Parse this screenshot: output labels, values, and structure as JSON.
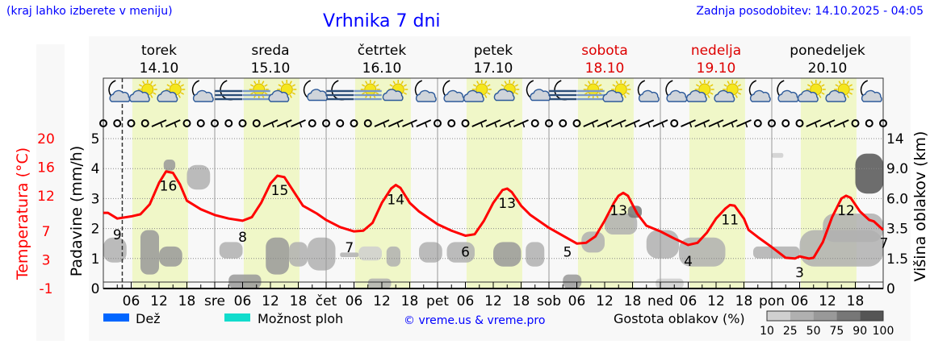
{
  "header": {
    "region_hint": "(kraj lahko izberete v meniju)",
    "title": "Vrhnika 7 dni",
    "updated": "Zadnja posodobitev: 14.10.2025 - 04:05"
  },
  "colors": {
    "temp": "#ff0000",
    "rain": "#0066ff",
    "showers": "#11dccc",
    "daylight": "#f0f7c8",
    "weekend": "#dd0000",
    "link": "#0000ff"
  },
  "legend": {
    "rain": "Dež",
    "showers": "Možnost ploh",
    "copyright": "© vreme.us & vreme.pro",
    "cloud_density_title": "Gostota oblakov (%)",
    "cloud_density_ticks": [
      "10",
      "25",
      "50",
      "75",
      "90",
      "100"
    ]
  },
  "chart_data": {
    "type": "line",
    "title": "Vrhnika 7 dni",
    "x_unit": "hours from Tue 14.10 00:00",
    "xlim": [
      0,
      168
    ],
    "now_hour": 4.08,
    "daylight_hours": [
      6.25,
      18.25
    ],
    "days": [
      {
        "name": "torek",
        "date": "14.10",
        "weekend": false,
        "abbr": ""
      },
      {
        "name": "sreda",
        "date": "15.10",
        "weekend": false,
        "abbr": "sre"
      },
      {
        "name": "četrtek",
        "date": "16.10",
        "weekend": false,
        "abbr": "čet"
      },
      {
        "name": "petek",
        "date": "17.10",
        "weekend": false,
        "abbr": "pet"
      },
      {
        "name": "sobota",
        "date": "18.10",
        "weekend": true,
        "abbr": "sob"
      },
      {
        "name": "nedelja",
        "date": "19.10",
        "weekend": true,
        "abbr": "ned"
      },
      {
        "name": "ponedeljek",
        "date": "20.10",
        "weekend": false,
        "abbr": "pon"
      }
    ],
    "hour_ticks": [
      "06",
      "12",
      "18"
    ],
    "axes": {
      "temp": {
        "label": "Temperatura (°C)",
        "ticks": [
          "20",
          "16",
          "12",
          "7",
          "3",
          "-1"
        ],
        "ylim": [
          -1,
          20
        ]
      },
      "precip": {
        "label": "Padavine (mm/h)",
        "ticks": [
          "0",
          "1",
          "2",
          "3",
          "4",
          "5"
        ],
        "ylim": [
          0,
          5
        ]
      },
      "cloud": {
        "label": "Višina oblakov (km)",
        "ticks": [
          "0",
          "1.5",
          "3.5",
          "6.0",
          "9.0",
          "14"
        ],
        "tick_values": [
          0,
          1.5,
          3.5,
          6,
          9,
          14
        ]
      }
    },
    "temperature": [
      [
        0,
        9.6
      ],
      [
        1,
        9.6
      ],
      [
        3,
        8.8
      ],
      [
        6,
        9.1
      ],
      [
        8,
        9.4
      ],
      [
        10,
        10.8
      ],
      [
        12,
        13.8
      ],
      [
        13.5,
        15.4
      ],
      [
        15,
        15.2
      ],
      [
        16.5,
        13.6
      ],
      [
        18,
        11.3
      ],
      [
        21,
        10.1
      ],
      [
        24,
        9.3
      ],
      [
        27,
        8.8
      ],
      [
        30,
        8.5
      ],
      [
        32,
        9.0
      ],
      [
        34,
        11.0
      ],
      [
        36,
        13.7
      ],
      [
        37.5,
        14.8
      ],
      [
        39,
        14.6
      ],
      [
        41,
        12.6
      ],
      [
        43,
        10.6
      ],
      [
        46,
        9.5
      ],
      [
        48,
        8.6
      ],
      [
        51,
        7.6
      ],
      [
        54,
        7.0
      ],
      [
        56,
        7.1
      ],
      [
        58,
        8.2
      ],
      [
        60,
        11.0
      ],
      [
        62,
        13.0
      ],
      [
        63,
        13.5
      ],
      [
        64,
        13.1
      ],
      [
        66,
        11.0
      ],
      [
        68,
        9.8
      ],
      [
        72,
        8.0
      ],
      [
        75,
        7.1
      ],
      [
        78,
        6.4
      ],
      [
        80,
        6.6
      ],
      [
        82,
        8.5
      ],
      [
        84,
        11.0
      ],
      [
        86,
        12.8
      ],
      [
        87,
        13.0
      ],
      [
        88,
        12.5
      ],
      [
        90,
        10.6
      ],
      [
        92,
        9.3
      ],
      [
        96,
        7.5
      ],
      [
        99,
        6.4
      ],
      [
        102,
        5.3
      ],
      [
        104,
        5.4
      ],
      [
        106,
        6.3
      ],
      [
        108,
        8.5
      ],
      [
        110,
        11.0
      ],
      [
        111,
        12.0
      ],
      [
        112,
        12.4
      ],
      [
        113,
        12.0
      ],
      [
        115,
        9.5
      ],
      [
        117,
        7.8
      ],
      [
        120,
        7.0
      ],
      [
        123,
        6.0
      ],
      [
        126,
        5.1
      ],
      [
        128,
        5.4
      ],
      [
        130,
        6.8
      ],
      [
        132,
        8.8
      ],
      [
        134,
        10.2
      ],
      [
        135,
        10.7
      ],
      [
        136,
        10.6
      ],
      [
        138,
        8.8
      ],
      [
        139,
        7.2
      ],
      [
        141,
        6.2
      ],
      [
        144,
        4.8
      ],
      [
        147,
        3.3
      ],
      [
        149,
        3.2
      ],
      [
        150,
        3.5
      ],
      [
        152,
        3.2
      ],
      [
        153,
        3.3
      ],
      [
        155,
        5.5
      ],
      [
        157,
        9.0
      ],
      [
        159,
        11.6
      ],
      [
        160,
        12.0
      ],
      [
        161,
        11.7
      ],
      [
        163,
        9.8
      ],
      [
        165,
        8.6
      ],
      [
        166,
        8.4
      ],
      [
        168,
        7.2
      ]
    ],
    "temp_labels": [
      {
        "hour": 14,
        "value": "16",
        "kind": "max"
      },
      {
        "hour": 38,
        "value": "15",
        "kind": "max"
      },
      {
        "hour": 63,
        "value": "14",
        "kind": "max"
      },
      {
        "hour": 87,
        "value": "13",
        "kind": "max"
      },
      {
        "hour": 111,
        "value": "13",
        "kind": "max"
      },
      {
        "hour": 135,
        "value": "11",
        "kind": "max"
      },
      {
        "hour": 160,
        "value": "12",
        "kind": "max"
      },
      {
        "hour": 3,
        "value": "9",
        "kind": "min"
      },
      {
        "hour": 30,
        "value": "8",
        "kind": "min"
      },
      {
        "hour": 53,
        "value": "7",
        "kind": "min"
      },
      {
        "hour": 78,
        "value": "6",
        "kind": "min"
      },
      {
        "hour": 100,
        "value": "5",
        "kind": "min"
      },
      {
        "hour": 126,
        "value": "4",
        "kind": "min"
      },
      {
        "hour": 150,
        "value": "3",
        "kind": "min"
      },
      {
        "hour": 168,
        "value": "7",
        "kind": "end"
      }
    ],
    "precipitation": [],
    "cloud_patches": [
      {
        "h": [
          0,
          5
        ],
        "km": [
          1.3,
          2.9
        ],
        "density": 25
      },
      {
        "h": [
          8,
          12
        ],
        "km": [
          0.7,
          3.4
        ],
        "density": 50
      },
      {
        "h": [
          12,
          17
        ],
        "km": [
          1.1,
          2.3
        ],
        "density": 50
      },
      {
        "h": [
          13,
          15.5
        ],
        "km": [
          8.8,
          10.5
        ],
        "density": 50
      },
      {
        "h": [
          18,
          23
        ],
        "km": [
          6.9,
          9.6
        ],
        "density": 40
      },
      {
        "h": [
          25,
          30
        ],
        "km": [
          1.5,
          2.6
        ],
        "density": 25
      },
      {
        "h": [
          27,
          34
        ],
        "km": [
          0,
          0.7
        ],
        "density": 50
      },
      {
        "h": [
          35,
          40
        ],
        "km": [
          0.7,
          2.9
        ],
        "density": 50
      },
      {
        "h": [
          40,
          44
        ],
        "km": [
          1.1,
          2.6
        ],
        "density": 40
      },
      {
        "h": [
          44,
          50
        ],
        "km": [
          0.9,
          2.9
        ],
        "density": 40
      },
      {
        "h": [
          51,
          55
        ],
        "km": [
          1.6,
          1.9
        ],
        "density": 25
      },
      {
        "h": [
          55,
          60
        ],
        "km": [
          1.4,
          2.3
        ],
        "density": 20
      },
      {
        "h": [
          57,
          62
        ],
        "km": [
          0,
          0.5
        ],
        "density": 40
      },
      {
        "h": [
          61,
          64
        ],
        "km": [
          1.1,
          2.3
        ],
        "density": 30
      },
      {
        "h": [
          68,
          73
        ],
        "km": [
          1.3,
          2.6
        ],
        "density": 40
      },
      {
        "h": [
          74,
          80
        ],
        "km": [
          1.3,
          2.6
        ],
        "density": 40
      },
      {
        "h": [
          84,
          90
        ],
        "km": [
          1.1,
          2.6
        ],
        "density": 50
      },
      {
        "h": [
          91,
          95
        ],
        "km": [
          1.1,
          2.6
        ],
        "density": 40
      },
      {
        "h": [
          99,
          103
        ],
        "km": [
          0,
          0.7
        ],
        "density": 50
      },
      {
        "h": [
          103,
          108
        ],
        "km": [
          1.9,
          3.3
        ],
        "density": 25
      },
      {
        "h": [
          108,
          115
        ],
        "km": [
          3.1,
          4.75
        ],
        "density": 40
      },
      {
        "h": [
          113,
          116
        ],
        "km": [
          4.4,
          5.4
        ],
        "density": 75
      },
      {
        "h": [
          117,
          124
        ],
        "km": [
          1.5,
          3.4
        ],
        "density": 30
      },
      {
        "h": [
          124,
          134
        ],
        "km": [
          1.1,
          2.9
        ],
        "density": 40
      },
      {
        "h": [
          119,
          125
        ],
        "km": [
          0,
          0.5
        ],
        "density": 20
      },
      {
        "h": [
          140,
          150
        ],
        "km": [
          1.5,
          2.3
        ],
        "density": 30
      },
      {
        "h": [
          150,
          168
        ],
        "km": [
          1.1,
          3.4
        ],
        "density": 40
      },
      {
        "h": [
          155,
          168
        ],
        "km": [
          2.6,
          4.75
        ],
        "density": 30
      },
      {
        "h": [
          162,
          168
        ],
        "km": [
          6.5,
          11.5
        ],
        "density": 90
      },
      {
        "h": [
          144,
          146.5
        ],
        "km": [
          10.8,
          11.6
        ],
        "density": 20
      }
    ],
    "weather_icons": [
      "moon-cloud",
      "sun-cloud",
      "sun-cloud",
      "moon-cloud",
      "moon-fog",
      "sun-fog",
      "sun-cloud",
      "moon-small-cloud",
      "moon-fog",
      "sun-fog",
      "sun-small-cloud",
      "moon-cloud",
      "moon-cloud",
      "sun-cloud",
      "sun-small-cloud",
      "moon-small-cloud",
      "moon-fog",
      "sun-fog",
      "sun-cloud",
      "moon-cloud",
      "moon-cloud",
      "sun-cloud",
      "sun-cloud",
      "moon-cloud",
      "moon-cloud",
      "sun-cloud",
      "sun-cloud",
      "moon-cloud"
    ],
    "wind_3h": [
      "calm",
      "calm",
      "calm",
      "calm",
      "barb",
      "barb",
      "calm",
      "calm",
      "calm",
      "calm",
      "calm",
      "calm",
      "barb",
      "barb",
      "barb",
      "calm",
      "calm",
      "calm",
      "calm",
      "calm",
      "barb",
      "barb",
      "barb",
      "barb",
      "calm",
      "calm",
      "calm",
      "barb",
      "barb",
      "barb",
      "barb",
      "calm",
      "calm",
      "calm",
      "calm",
      "barb",
      "barb",
      "barb",
      "barb",
      "barb",
      "barb",
      "calm",
      "barb",
      "barb",
      "barb",
      "barb",
      "barb",
      "calm",
      "calm",
      "calm",
      "calm",
      "barb",
      "barb",
      "barb",
      "calm",
      "calm",
      "calm"
    ]
  }
}
